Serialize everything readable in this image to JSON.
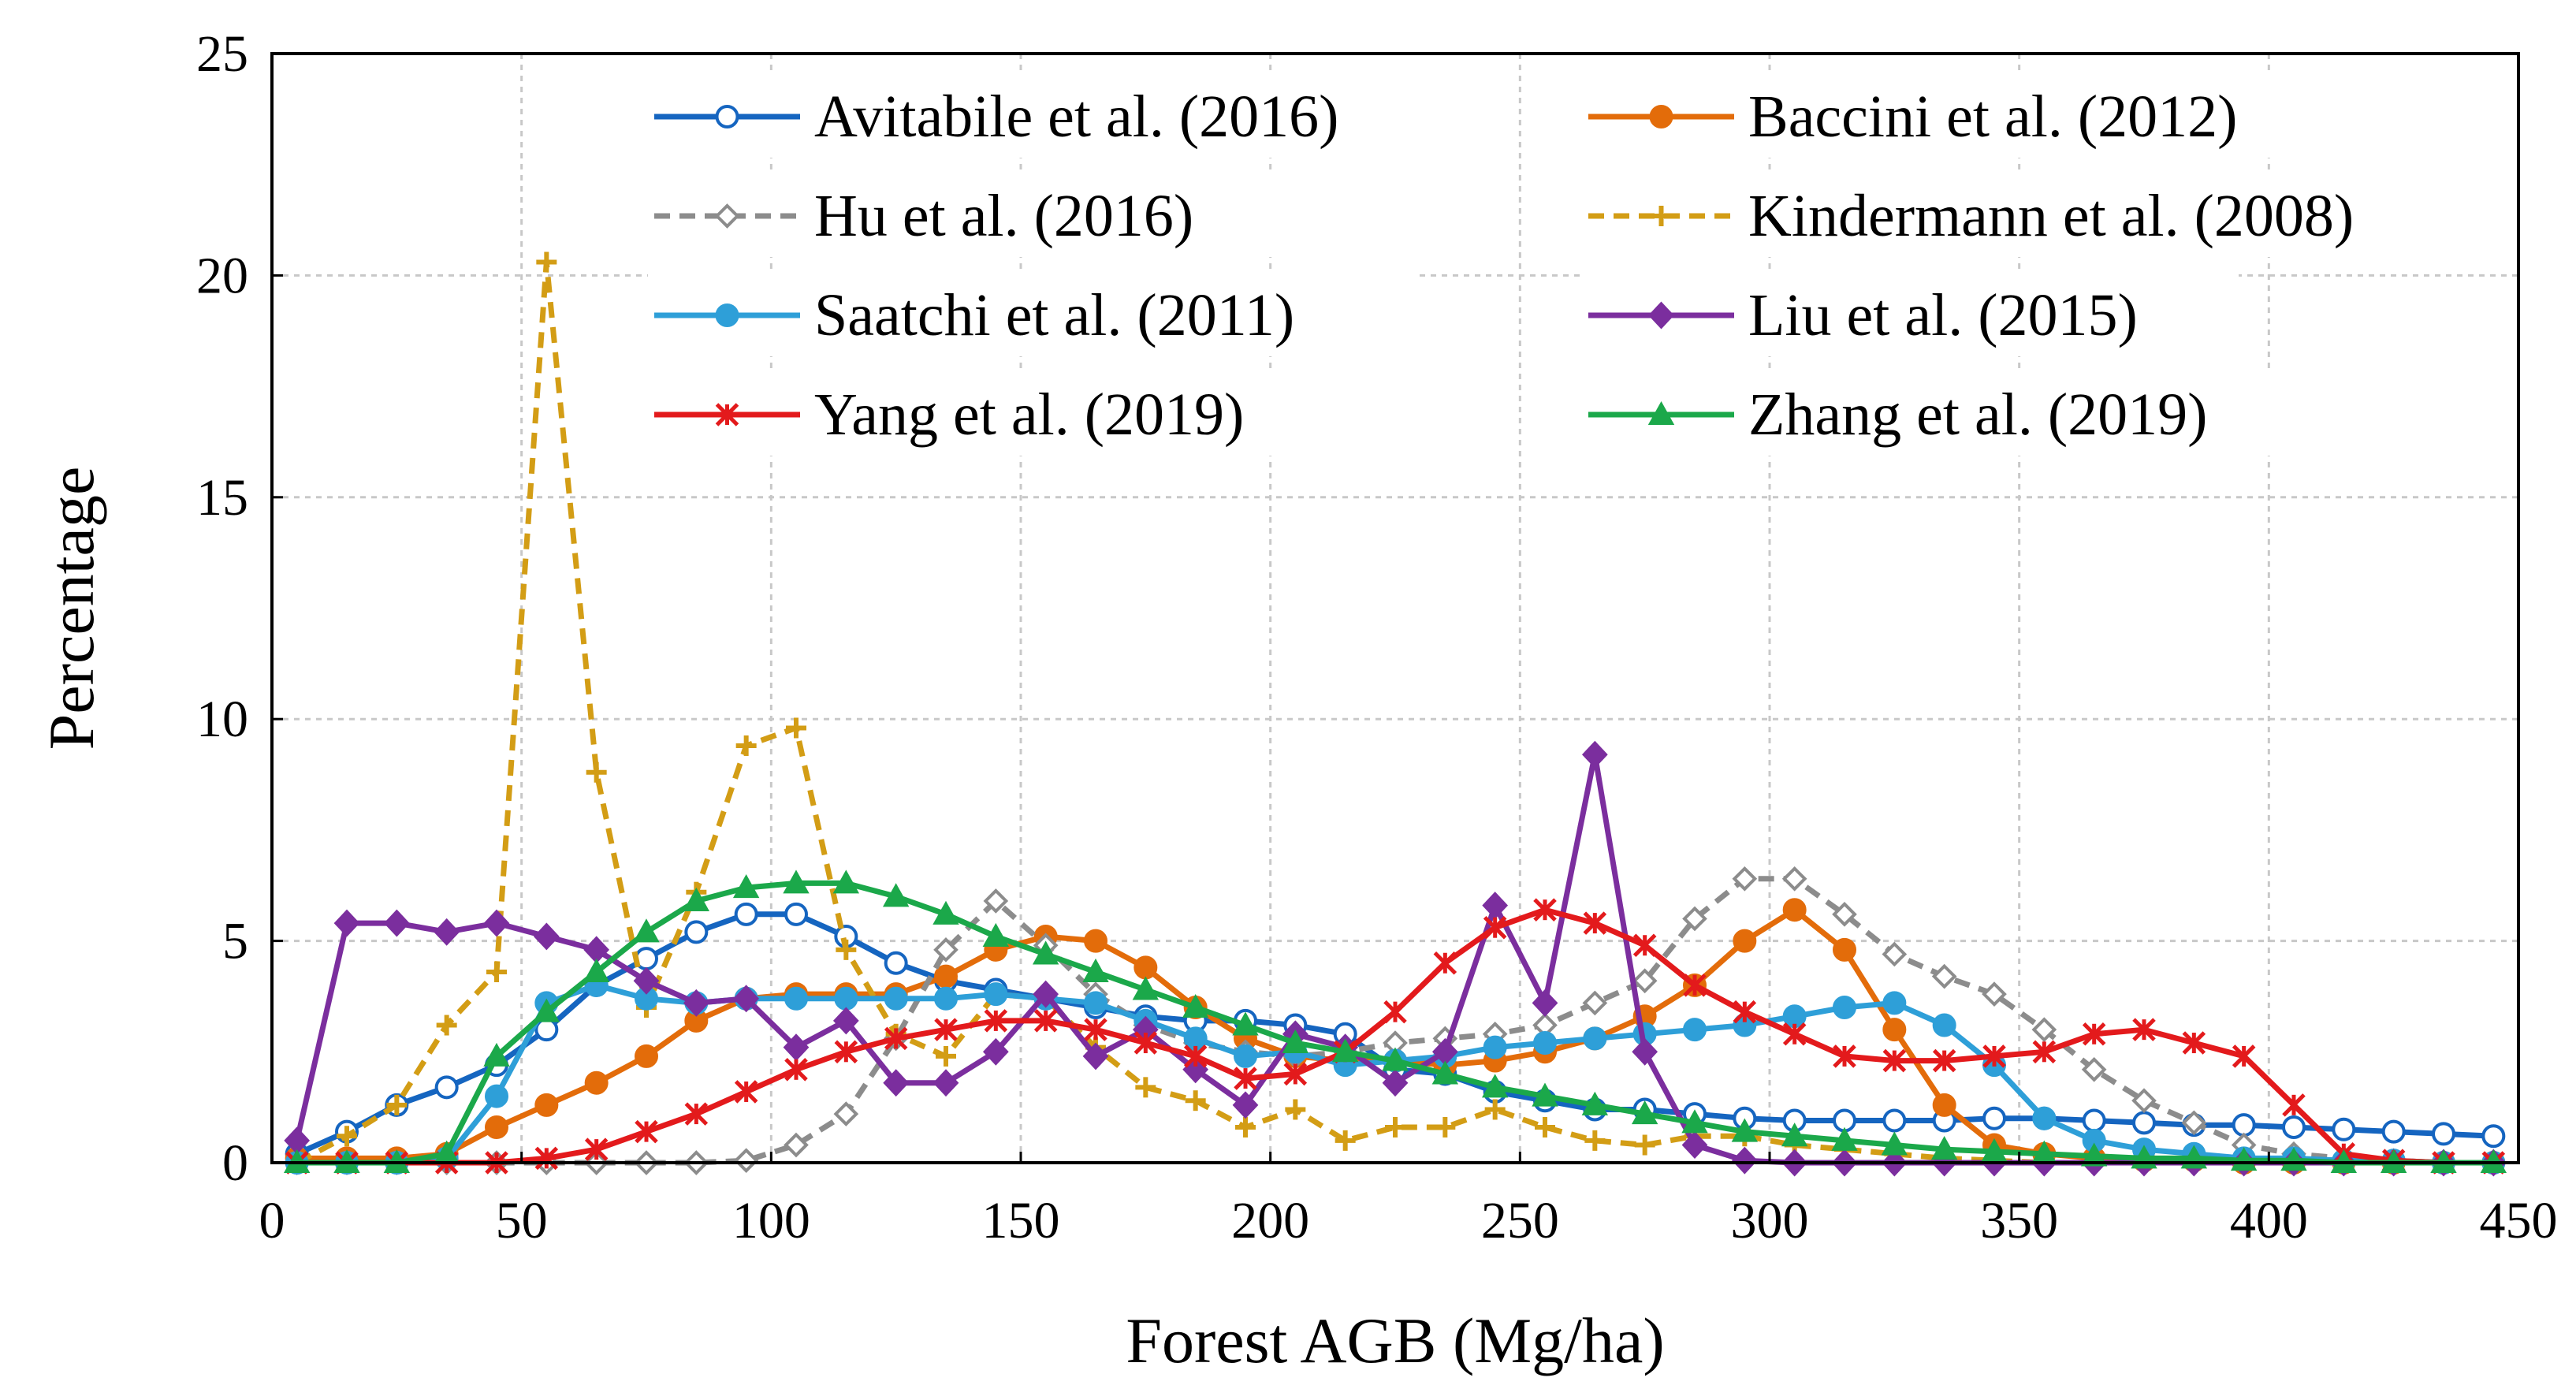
{
  "chart_data": {
    "type": "line",
    "xlabel": "Forest AGB  (Mg/ha)",
    "ylabel": "Percentage",
    "xlim": [
      0,
      450
    ],
    "ylim": [
      0,
      25
    ],
    "xticks": [
      0,
      50,
      100,
      150,
      200,
      250,
      300,
      350,
      400,
      450
    ],
    "yticks": [
      0,
      5,
      10,
      15,
      20,
      25
    ],
    "grid": true,
    "x": [
      5,
      15,
      25,
      35,
      45,
      55,
      65,
      75,
      85,
      95,
      105,
      115,
      125,
      135,
      145,
      155,
      165,
      175,
      185,
      195,
      205,
      215,
      225,
      235,
      245,
      255,
      265,
      275,
      285,
      295,
      305,
      315,
      325,
      335,
      345,
      355,
      365,
      375,
      385,
      395,
      405,
      415,
      425,
      435,
      445
    ],
    "series": [
      {
        "name": "Avitabile et al. (2016)",
        "color": "#1565C0",
        "dash": "solid",
        "marker": "circle-open",
        "values": [
          0.2,
          0.7,
          1.3,
          1.7,
          2.2,
          3.0,
          4.0,
          4.6,
          5.2,
          5.6,
          5.6,
          5.1,
          4.5,
          4.1,
          3.9,
          3.7,
          3.5,
          3.3,
          3.2,
          3.2,
          3.1,
          2.9,
          2.1,
          2.0,
          1.6,
          1.4,
          1.2,
          1.2,
          1.1,
          1.0,
          0.95,
          0.95,
          0.95,
          0.95,
          1.0,
          1.0,
          0.95,
          0.9,
          0.85,
          0.85,
          0.8,
          0.75,
          0.7,
          0.65,
          0.6
        ]
      },
      {
        "name": "Baccini et al. (2012)",
        "color": "#E36C0A",
        "dash": "solid",
        "marker": "circle-filled",
        "values": [
          0.1,
          0.1,
          0.1,
          0.2,
          0.8,
          1.3,
          1.8,
          2.4,
          3.2,
          3.7,
          3.8,
          3.8,
          3.8,
          4.2,
          4.8,
          5.1,
          5.0,
          4.4,
          3.5,
          2.8,
          2.4,
          2.3,
          2.3,
          2.2,
          2.3,
          2.5,
          2.8,
          3.3,
          4.0,
          5.0,
          5.7,
          4.8,
          3.0,
          1.3,
          0.4,
          0.2,
          0.1,
          0.05,
          0.05,
          0.0,
          0.0,
          0.0,
          0.0,
          0.0,
          0.0
        ]
      },
      {
        "name": "Hu et al. (2016)",
        "color": "#8C8C8C",
        "dash": "dashed",
        "marker": "diamond-open",
        "values": [
          0.0,
          0.0,
          0.0,
          0.0,
          0.0,
          0.0,
          0.0,
          0.0,
          0.0,
          0.05,
          0.4,
          1.1,
          2.8,
          4.8,
          5.9,
          4.9,
          3.8,
          3.1,
          2.7,
          2.5,
          2.4,
          2.5,
          2.7,
          2.8,
          2.9,
          3.1,
          3.6,
          4.1,
          5.5,
          6.4,
          6.4,
          5.6,
          4.7,
          4.2,
          3.8,
          3.0,
          2.1,
          1.4,
          0.9,
          0.4,
          0.2,
          0.1,
          0.05,
          0.0,
          0.0
        ]
      },
      {
        "name": "Kindermann et al. (2008)",
        "color": "#D39D15",
        "dash": "dashed",
        "marker": "plus",
        "values": [
          0.0,
          0.6,
          1.3,
          3.1,
          4.3,
          20.3,
          8.8,
          3.5,
          6.1,
          9.4,
          9.8,
          4.8,
          2.9,
          2.4,
          3.8,
          3.7,
          2.6,
          1.7,
          1.4,
          0.8,
          1.2,
          0.5,
          0.8,
          0.8,
          1.2,
          0.8,
          0.5,
          0.4,
          0.6,
          0.6,
          0.4,
          0.3,
          0.2,
          0.1,
          0.05,
          0.0,
          0.0,
          0.0,
          0.0,
          0.0,
          0.0,
          0.0,
          0.0,
          0.0,
          0.0
        ]
      },
      {
        "name": "Saatchi et al. (2011)",
        "color": "#2E9FD8",
        "dash": "solid",
        "marker": "circle-filled",
        "values": [
          0.0,
          0.0,
          0.0,
          0.1,
          1.5,
          3.6,
          4.0,
          3.7,
          3.6,
          3.7,
          3.7,
          3.7,
          3.7,
          3.7,
          3.8,
          3.7,
          3.6,
          3.2,
          2.8,
          2.4,
          2.5,
          2.2,
          2.3,
          2.4,
          2.6,
          2.7,
          2.8,
          2.9,
          3.0,
          3.1,
          3.3,
          3.5,
          3.6,
          3.1,
          2.2,
          1.0,
          0.5,
          0.3,
          0.2,
          0.1,
          0.1,
          0.05,
          0.05,
          0.0,
          0.0
        ]
      },
      {
        "name": "Liu et al. (2015)",
        "color": "#7B2E9E",
        "dash": "solid",
        "marker": "diamond-filled",
        "values": [
          0.5,
          5.4,
          5.4,
          5.2,
          5.4,
          5.1,
          4.8,
          4.1,
          3.6,
          3.7,
          2.6,
          3.2,
          1.8,
          1.8,
          2.5,
          3.8,
          2.4,
          3.0,
          2.1,
          1.3,
          2.9,
          2.6,
          1.8,
          2.5,
          5.8,
          3.6,
          9.2,
          2.5,
          0.4,
          0.05,
          0.0,
          0.0,
          0.0,
          0.0,
          0.0,
          0.0,
          0.0,
          0.0,
          0.0,
          0.0,
          0.0,
          0.0,
          0.0,
          0.0,
          0.0
        ]
      },
      {
        "name": "Yang et al. (2019)",
        "color": "#E31A1C",
        "dash": "solid",
        "marker": "star",
        "values": [
          0.0,
          0.0,
          0.0,
          0.0,
          0.0,
          0.1,
          0.3,
          0.7,
          1.1,
          1.6,
          2.1,
          2.5,
          2.8,
          3.0,
          3.2,
          3.2,
          3.0,
          2.7,
          2.4,
          1.9,
          2.0,
          2.5,
          3.4,
          4.5,
          5.3,
          5.7,
          5.4,
          4.9,
          4.0,
          3.4,
          2.9,
          2.4,
          2.3,
          2.3,
          2.4,
          2.5,
          2.9,
          3.0,
          2.7,
          2.4,
          1.3,
          0.2,
          0.05,
          0.0,
          0.0
        ]
      },
      {
        "name": "Zhang et al. (2019)",
        "color": "#1BA84A",
        "dash": "solid",
        "marker": "triangle-filled",
        "values": [
          0.0,
          0.0,
          0.0,
          0.2,
          2.4,
          3.4,
          4.3,
          5.2,
          5.9,
          6.2,
          6.3,
          6.3,
          6.0,
          5.6,
          5.1,
          4.7,
          4.3,
          3.9,
          3.5,
          3.1,
          2.7,
          2.5,
          2.3,
          2.0,
          1.7,
          1.5,
          1.3,
          1.1,
          0.9,
          0.7,
          0.6,
          0.5,
          0.4,
          0.3,
          0.25,
          0.2,
          0.15,
          0.1,
          0.1,
          0.05,
          0.05,
          0.0,
          0.0,
          0.0,
          0.0
        ]
      }
    ]
  }
}
